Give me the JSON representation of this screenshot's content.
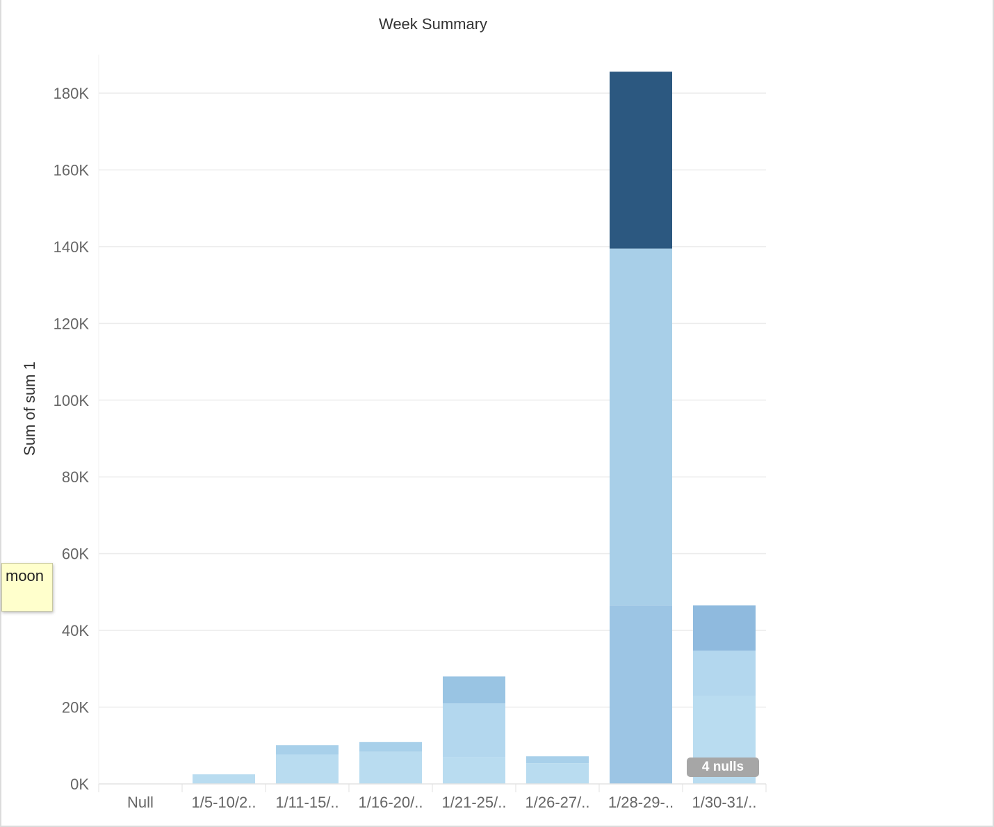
{
  "chart_data": {
    "type": "bar",
    "stacked": true,
    "title": "Week Summary",
    "xlabel": "",
    "ylabel": "Sum of sum 1",
    "ylim": [
      0,
      190000
    ],
    "yticks": [
      0,
      20000,
      40000,
      60000,
      80000,
      100000,
      120000,
      140000,
      160000,
      180000
    ],
    "ytick_labels": [
      "0K",
      "20K",
      "40K",
      "60K",
      "80K",
      "100K",
      "120K",
      "140K",
      "160K",
      "180K"
    ],
    "categories": [
      "Null",
      "1/5-10/2..",
      "1/11-15/..",
      "1/16-20/..",
      "1/21-25/..",
      "1/26-27/..",
      "1/28-29-..",
      "1/30-31/.."
    ],
    "stacks": [
      [],
      [
        {
          "value": 2500,
          "color": "#b9dcf0"
        }
      ],
      [
        {
          "value": 7700,
          "color": "#b9dcf0"
        },
        {
          "value": 2400,
          "color": "#a8d0ea"
        }
      ],
      [
        {
          "value": 8400,
          "color": "#b9dcf0"
        },
        {
          "value": 2500,
          "color": "#a8d0ea"
        }
      ],
      [
        {
          "value": 7000,
          "color": "#b9dcf0"
        },
        {
          "value": 14000,
          "color": "#b3d7ee"
        },
        {
          "value": 7000,
          "color": "#99c4e3"
        }
      ],
      [
        {
          "value": 5400,
          "color": "#b9dcf0"
        },
        {
          "value": 1800,
          "color": "#a8d0ea"
        }
      ],
      [
        {
          "value": 46500,
          "color": "#9cc5e4"
        },
        {
          "value": 93000,
          "color": "#a8cfe8"
        },
        {
          "value": 46100,
          "color": "#2c5880"
        }
      ],
      [
        {
          "value": 23000,
          "color": "#b9dcf0"
        },
        {
          "value": 11700,
          "color": "#b3d7ee"
        },
        {
          "value": 11800,
          "color": "#8fbade"
        }
      ]
    ],
    "grid": true,
    "legend": "none"
  },
  "annotations": {
    "note_text": "moon",
    "null_badge": "4 nulls"
  },
  "colors": {
    "gridline": "#ececec",
    "axis_text": "#666666",
    "title_text": "#333333"
  }
}
